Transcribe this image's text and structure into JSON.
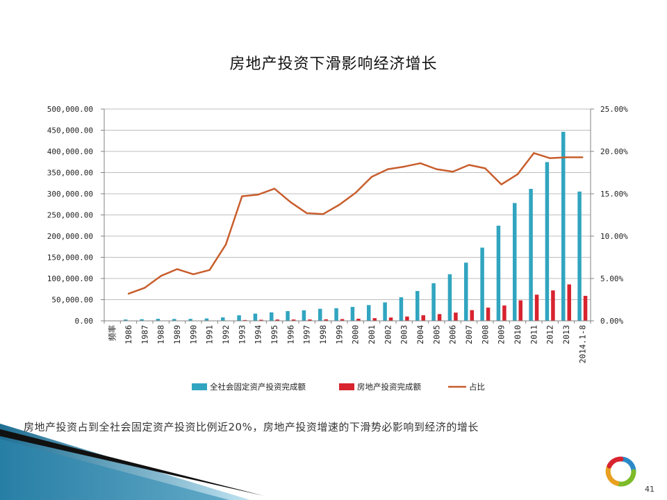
{
  "slide": {
    "title": "房地产投资下滑影响经济增长",
    "caption": "房地产投资占到全社会固定资产投资比例近20%，房地产投资增速的下滑势必影响到经济的增长",
    "page_number": "41"
  },
  "chart_data": {
    "type": "bar",
    "title": "房地产投资下滑影响经济增长",
    "x_axis_title": "频率",
    "categories": [
      "1986",
      "1987",
      "1988",
      "1989",
      "1990",
      "1991",
      "1992",
      "1993",
      "1994",
      "1995",
      "1996",
      "1997",
      "1998",
      "1999",
      "2000",
      "2001",
      "2002",
      "2003",
      "2004",
      "2005",
      "2006",
      "2007",
      "2008",
      "2009",
      "2010",
      "2011",
      "2012",
      "2013",
      "2014.1-8"
    ],
    "y_left": {
      "min": 0,
      "max": 500000,
      "step": 50000,
      "labels": [
        "0.00",
        "50,000.00",
        "100,000.00",
        "150,000.00",
        "200,000.00",
        "250,000.00",
        "300,000.00",
        "350,000.00",
        "400,000.00",
        "450,000.00",
        "500,000.00"
      ]
    },
    "y_right": {
      "min": 0,
      "max": 25,
      "step": 5,
      "labels": [
        "0.00%",
        "5.00%",
        "10.00%",
        "15.00%",
        "20.00%",
        "25.00%"
      ]
    },
    "series": [
      {
        "name": "全社会固定资产投资完成额",
        "kind": "bar",
        "axis": "left",
        "color": "#31a5c0",
        "values": [
          3121,
          3792,
          4754,
          4410,
          4517,
          5595,
          8080,
          13072,
          17042,
          20019,
          22974,
          24941,
          28406,
          29855,
          32918,
          37214,
          43500,
          55567,
          70477,
          88774,
          109998,
          137324,
          172828,
          224599,
          278122,
          311485,
          374695,
          446294,
          305204
        ]
      },
      {
        "name": "房地产投资完成额",
        "kind": "bar",
        "axis": "left",
        "color": "#d7242f",
        "values": [
          101,
          149,
          257,
          273,
          253,
          336,
          732,
          1938,
          2554,
          3149,
          3216,
          3178,
          3614,
          4103,
          4984,
          6344,
          7791,
          10154,
          13158,
          15909,
          19423,
          25289,
          31203,
          36242,
          48259,
          61797,
          71804,
          86013,
          58996
        ]
      },
      {
        "name": "占比",
        "kind": "line",
        "axis": "right",
        "color": "#c85d2c",
        "values": [
          3.2,
          3.9,
          5.3,
          6.1,
          5.5,
          6.0,
          9.0,
          14.7,
          14.9,
          15.6,
          14.0,
          12.7,
          12.6,
          13.7,
          15.1,
          17.0,
          17.9,
          18.2,
          18.6,
          17.9,
          17.6,
          18.4,
          18.0,
          16.1,
          17.3,
          19.8,
          19.2,
          19.3,
          19.3
        ]
      }
    ],
    "legend": "bottom",
    "grid": true
  }
}
